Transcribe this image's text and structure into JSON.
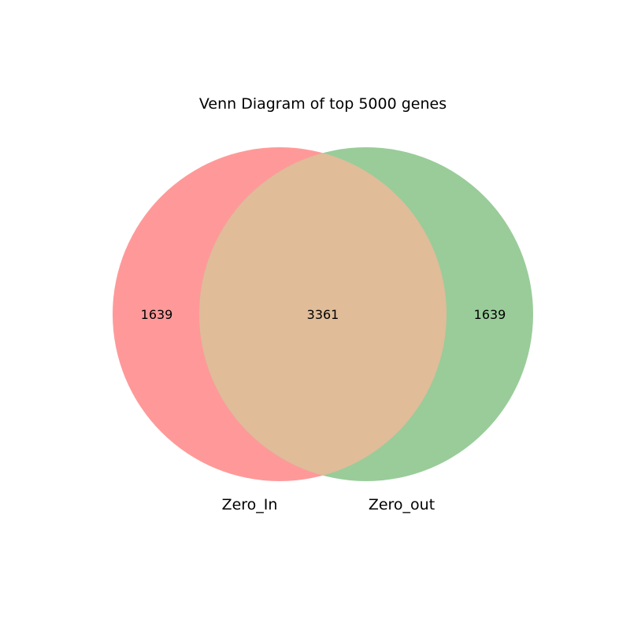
{
  "chart_data": {
    "type": "venn",
    "title": "Venn Diagram of top 5000 genes",
    "sets": [
      {
        "name": "Zero_In",
        "color": "#ff9999",
        "only_count": "1639"
      },
      {
        "name": "Zero_out",
        "color": "#99cc99",
        "only_count": "1639"
      }
    ],
    "intersection": {
      "count": "3361",
      "color": "#e0bc99"
    }
  }
}
